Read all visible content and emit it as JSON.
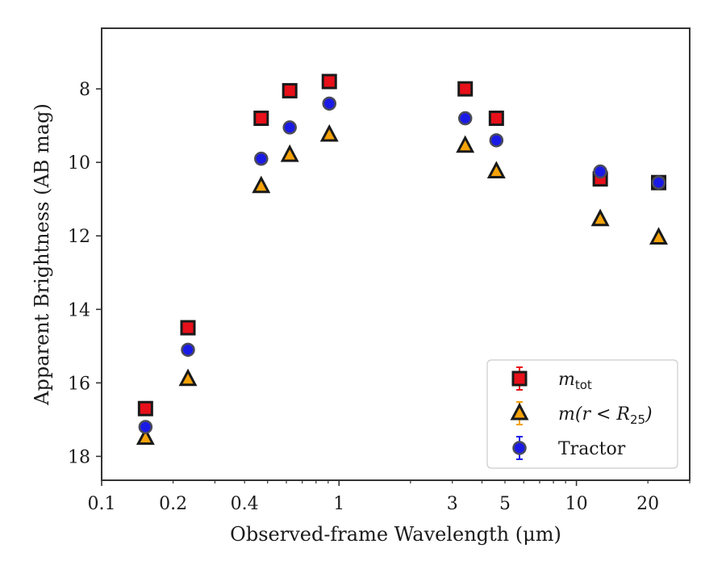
{
  "chart_data": {
    "type": "scatter",
    "xlabel": "Observed-frame Wavelength (μm)",
    "ylabel": "Apparent Brightness (AB mag)",
    "xscale": "log",
    "xlim": [
      0.1,
      30
    ],
    "ylim": [
      18.65,
      6.35
    ],
    "y_inverted": true,
    "grid": false,
    "legend_position": "lower-right",
    "x_tick_labels": [
      {
        "value": 0.1,
        "label": "0.1"
      },
      {
        "value": 0.2,
        "label": "0.2"
      },
      {
        "value": 0.4,
        "label": "0.4"
      },
      {
        "value": 1,
        "label": "1"
      },
      {
        "value": 3,
        "label": "3"
      },
      {
        "value": 5,
        "label": "5"
      },
      {
        "value": 10,
        "label": "10"
      },
      {
        "value": 20,
        "label": "20"
      }
    ],
    "y_ticks": [
      8,
      10,
      12,
      14,
      16,
      18
    ],
    "series": [
      {
        "name": "m_tot",
        "legend_main": "m",
        "legend_sub": "tot",
        "marker": "square",
        "color": "#e8101a",
        "edge": "#1a1a1a",
        "x": [
          0.153,
          0.231,
          0.47,
          0.62,
          0.91,
          3.4,
          4.6,
          12.6,
          22.2
        ],
        "y": [
          16.7,
          14.5,
          8.8,
          8.05,
          7.8,
          8.0,
          8.8,
          10.45,
          10.55
        ]
      },
      {
        "name": "m(r < R25)",
        "legend_main": "m(r < R",
        "legend_sub": "25",
        "legend_tail": ")",
        "marker": "triangle",
        "color": "#f5a20a",
        "edge": "#1a1a1a",
        "x": [
          0.153,
          0.231,
          0.47,
          0.62,
          0.91,
          3.4,
          4.6,
          12.6,
          22.2
        ],
        "y": [
          17.5,
          15.9,
          10.65,
          9.8,
          9.25,
          9.55,
          10.25,
          11.55,
          12.05
        ]
      },
      {
        "name": "Tractor",
        "marker": "circle",
        "color": "#1a1ae6",
        "edge": "#4a4a5a",
        "x": [
          0.153,
          0.231,
          0.47,
          0.62,
          0.91,
          3.4,
          4.6,
          12.6,
          22.2
        ],
        "y": [
          17.2,
          15.1,
          9.9,
          9.05,
          8.4,
          8.8,
          9.4,
          10.25,
          10.55
        ]
      }
    ]
  }
}
